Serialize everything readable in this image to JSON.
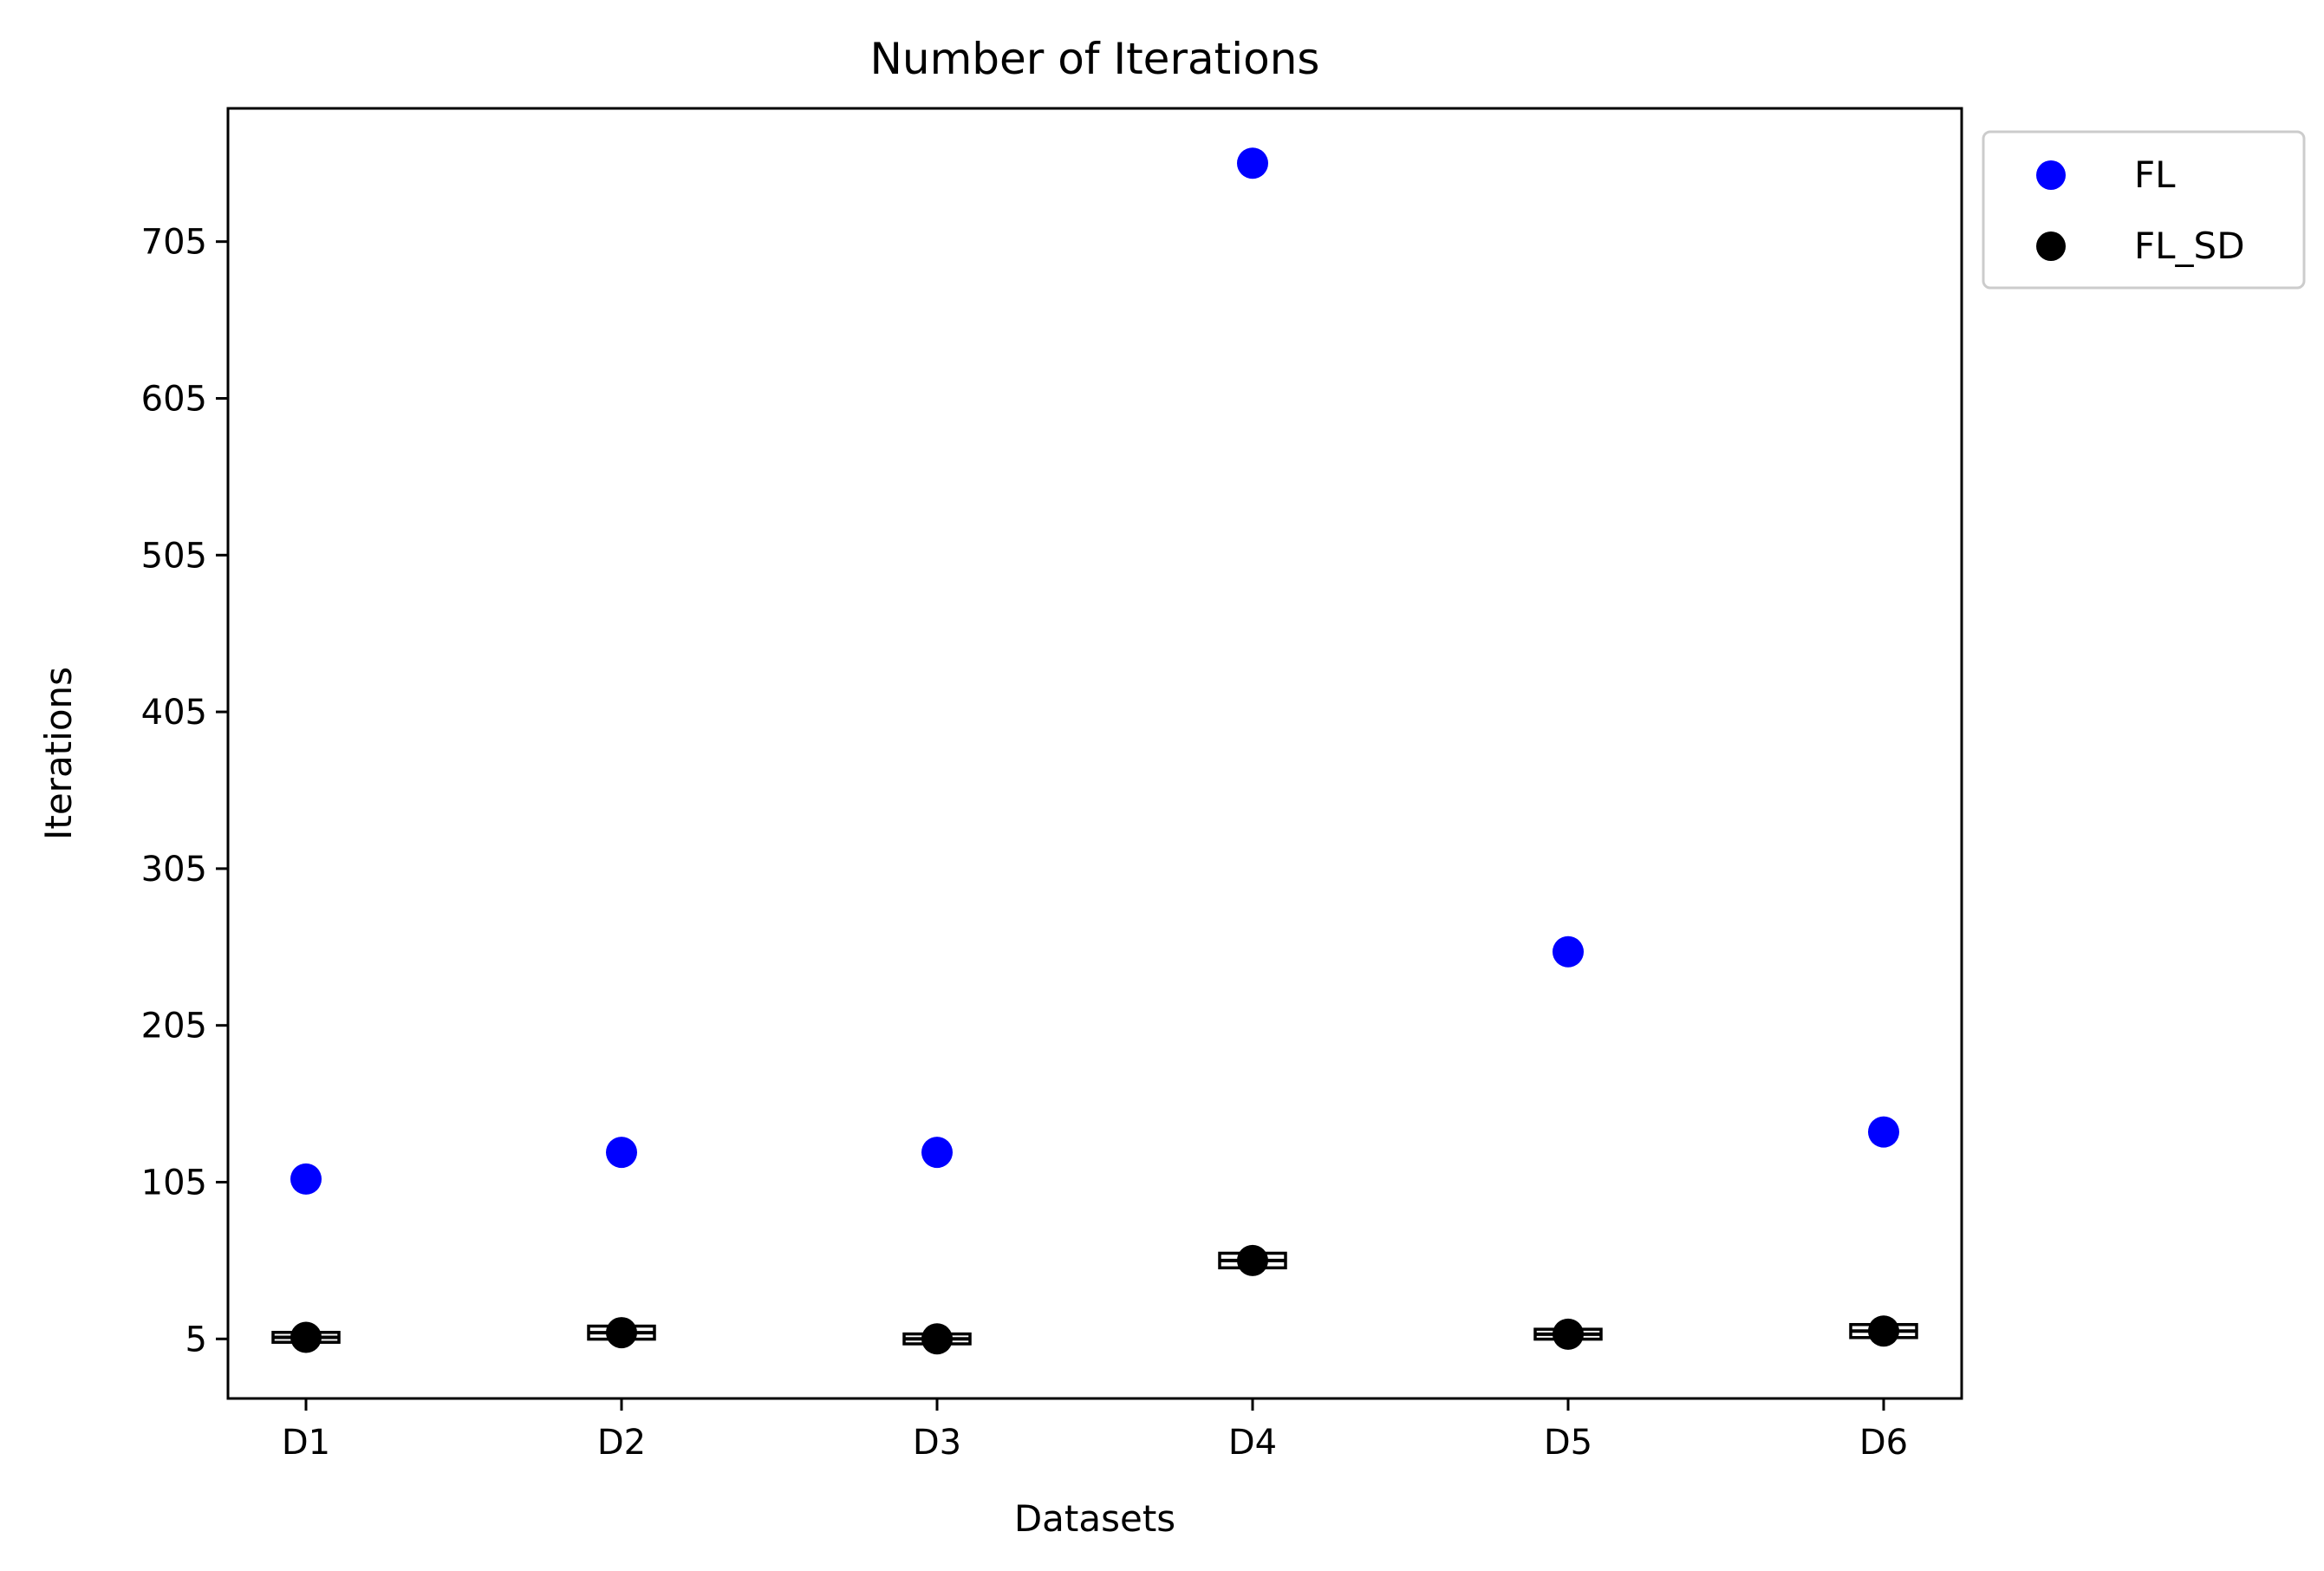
{
  "chart_data": {
    "type": "scatter",
    "title": "Number of Iterations",
    "xlabel": "Datasets",
    "ylabel": "Iterations",
    "categories": [
      "D1",
      "D2",
      "D3",
      "D4",
      "D5",
      "D6"
    ],
    "yticks": [
      5,
      105,
      205,
      305,
      405,
      505,
      605,
      705
    ],
    "ylim": [
      -33,
      790
    ],
    "legend_position": "outside top-right",
    "series": [
      {
        "name": "FL",
        "color": "#0000ff",
        "values": [
          107,
          124,
          124,
          755,
          252,
          137
        ]
      },
      {
        "name": "FL_SD",
        "color": "#000000",
        "values": [
          6,
          9,
          5,
          55,
          8,
          10
        ],
        "error": [
          1.5,
          2.5,
          1.5,
          3,
          1.5,
          2.5
        ]
      }
    ]
  }
}
